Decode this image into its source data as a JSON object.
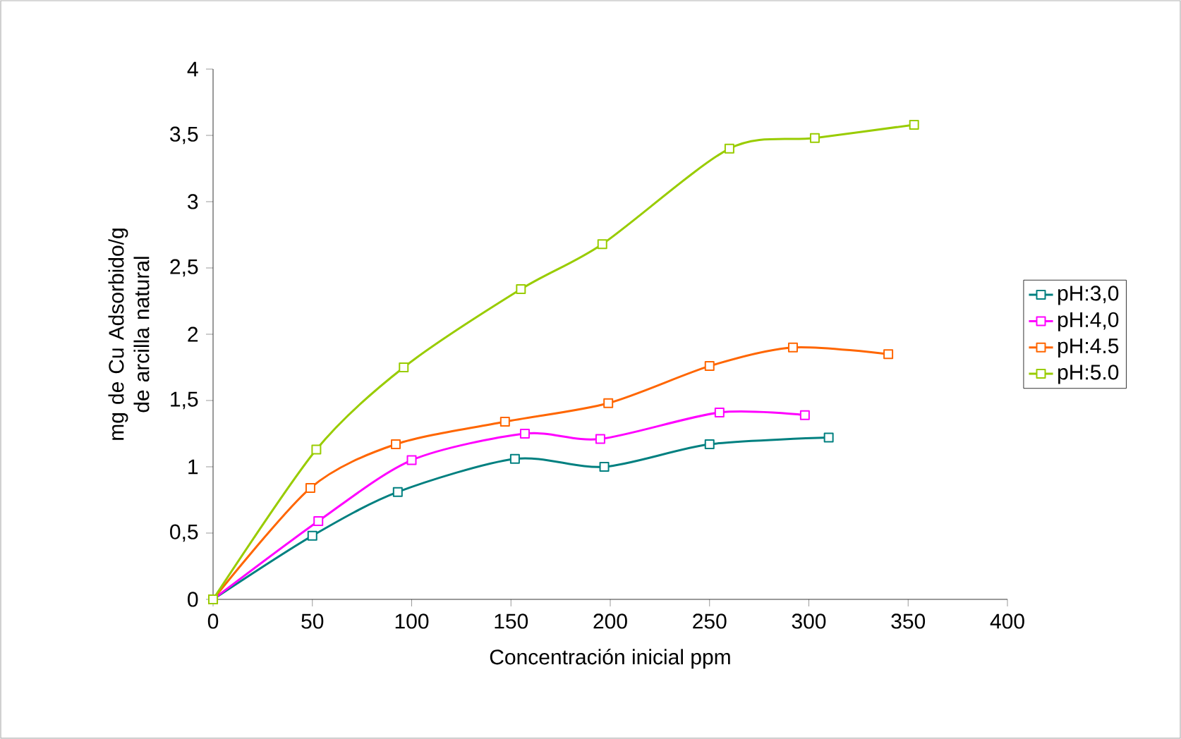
{
  "chart_data": {
    "type": "line",
    "xlabel": "Concentración inicial ppm",
    "ylabel": "mg de Cu Adsorbido/g de arcilla natural",
    "xlim": [
      0,
      400
    ],
    "xticks": [
      0,
      50,
      100,
      150,
      200,
      250,
      300,
      350,
      400
    ],
    "ylim": [
      0,
      4
    ],
    "yticks": [
      0,
      {
        "value": 0.5,
        "label": "0,5"
      },
      1,
      {
        "value": 1.5,
        "label": "1,5"
      },
      2,
      {
        "value": 2.5,
        "label": "2,5"
      },
      3,
      {
        "value": 3.5,
        "label": "3,5"
      },
      4
    ],
    "marker": "square",
    "legend": "right",
    "grid": false,
    "series": [
      {
        "name": "pH:3,0",
        "color": "#008080",
        "x": [
          0,
          50,
          93,
          152,
          197,
          250,
          310
        ],
        "values": [
          0,
          0.48,
          0.81,
          1.06,
          1.0,
          1.17,
          1.22
        ]
      },
      {
        "name": "pH:4,0",
        "color": "#ff00ff",
        "x": [
          0,
          53,
          100,
          157,
          195,
          255,
          298
        ],
        "values": [
          0,
          0.59,
          1.05,
          1.25,
          1.21,
          1.41,
          1.39
        ]
      },
      {
        "name": "pH:4.5",
        "color": "#ff6600",
        "x": [
          0,
          49,
          92,
          147,
          199,
          250,
          292,
          340
        ],
        "values": [
          0,
          0.84,
          1.17,
          1.34,
          1.48,
          1.76,
          1.9,
          1.85
        ]
      },
      {
        "name": "pH:5.0",
        "color": "#99cc00",
        "x": [
          0,
          52,
          96,
          155,
          196,
          260,
          303,
          353
        ],
        "values": [
          0,
          1.13,
          1.75,
          2.34,
          2.68,
          3.4,
          3.48,
          3.58
        ]
      }
    ]
  }
}
